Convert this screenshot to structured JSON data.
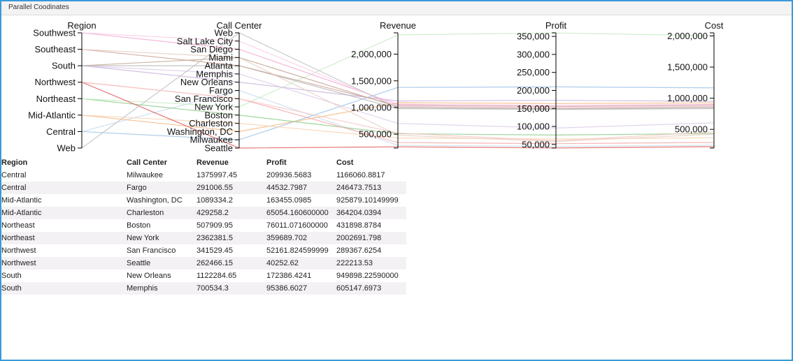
{
  "panel": {
    "title": "Parallel Coodinates"
  },
  "chart_data": {
    "type": "parallel-coordinates",
    "axes": [
      {
        "name": "Region",
        "kind": "category",
        "categories": [
          "Southwest",
          "Southeast",
          "South",
          "Northwest",
          "Northeast",
          "Mid-Atlantic",
          "Central",
          "Web"
        ]
      },
      {
        "name": "Call Center",
        "kind": "category",
        "categories": [
          "Web",
          "Salt Lake City",
          "San Diego",
          "Miami",
          "Atlanta",
          "Memphis",
          "New Orleans",
          "Fargo",
          "San Francisco",
          "New York",
          "Boston",
          "Charleston",
          "Washington, DC",
          "Milwaukee",
          "Seattle"
        ]
      },
      {
        "name": "Revenue",
        "kind": "number",
        "domain": [
          240000,
          2400000
        ],
        "ticks": [
          500000,
          1000000,
          1500000,
          2000000
        ],
        "tick_labels": [
          "500,000",
          "1,000,000",
          "1,500,000",
          "2,000,000"
        ]
      },
      {
        "name": "Profit",
        "kind": "number",
        "domain": [
          40000,
          360000
        ],
        "ticks": [
          50000,
          100000,
          150000,
          200000,
          250000,
          300000,
          350000
        ],
        "tick_labels": [
          "50,000",
          "100,000",
          "150,000",
          "200,000",
          "250,000",
          "300,000",
          "350,000"
        ]
      },
      {
        "name": "Cost",
        "kind": "number",
        "domain": [
          200000,
          2050000
        ],
        "ticks": [
          500000,
          1000000,
          1500000,
          2000000
        ],
        "tick_labels": [
          "500,000",
          "1,000,000",
          "1,500,000",
          "2,000,000"
        ]
      }
    ],
    "lines": [
      {
        "region": "Central",
        "center": "Milwaukee",
        "revenue": 1375997.45,
        "profit": 209936.5683,
        "cost": 1166060.8817,
        "color": "#9ec4e6"
      },
      {
        "region": "Central",
        "center": "Fargo",
        "revenue": 291006.55,
        "profit": 44532.7987,
        "cost": 246473.7513,
        "color": "#c9dcf0"
      },
      {
        "region": "Mid-Atlantic",
        "center": "Washington, DC",
        "revenue": 1089334.2,
        "profit": 163455.0985,
        "cost": 925879.10149999,
        "color": "#f5b880"
      },
      {
        "region": "Mid-Atlantic",
        "center": "Charleston",
        "revenue": 429258.2,
        "profit": 65054.1606,
        "cost": 364204.0394,
        "color": "#f8d2b0"
      },
      {
        "region": "Northeast",
        "center": "Boston",
        "revenue": 507909.95,
        "profit": 76011.0716,
        "cost": 431898.8784,
        "color": "#8fcf8a"
      },
      {
        "region": "Northeast",
        "center": "New York",
        "revenue": 2362381.5,
        "profit": 359689.702,
        "cost": 2002691.798,
        "color": "#c9ebc5"
      },
      {
        "region": "Northwest",
        "center": "San Francisco",
        "revenue": 341529.45,
        "profit": 52161.824599999,
        "cost": 289367.6254,
        "color": "#f7a9a9"
      },
      {
        "region": "Northwest",
        "center": "Seattle",
        "revenue": 262466.15,
        "profit": 40252.62,
        "cost": 222213.53,
        "color": "#e06060"
      },
      {
        "region": "South",
        "center": "New Orleans",
        "revenue": 1122284.65,
        "profit": 172386.4241,
        "cost": 949898.2259,
        "color": "#c9b1dc"
      },
      {
        "region": "South",
        "center": "Memphis",
        "revenue": 700534.3,
        "profit": 95386.6027,
        "cost": 605147.6973,
        "color": "#dccdea"
      },
      {
        "region": "South",
        "center": "Miami",
        "revenue": 1010000,
        "profit": 150000,
        "cost": 860000,
        "color": "#c3a796"
      },
      {
        "region": "South",
        "center": "Atlanta",
        "revenue": 980000,
        "profit": 147000,
        "cost": 833000,
        "color": "#b8b8b8"
      },
      {
        "region": "Southeast",
        "center": "Atlanta",
        "revenue": 1040000,
        "profit": 155000,
        "cost": 885000,
        "color": "#d0a89a"
      },
      {
        "region": "Southwest",
        "center": "San Diego",
        "revenue": 1060000,
        "profit": 158000,
        "cost": 902000,
        "color": "#f4a9d4"
      },
      {
        "region": "Southwest",
        "center": "Salt Lake City",
        "revenue": 1020000,
        "profit": 152000,
        "cost": 868000,
        "color": "#f9cde6"
      },
      {
        "region": "Web",
        "center": "Web",
        "revenue": 990000,
        "profit": 148000,
        "cost": 842000,
        "color": "#c0c0c0"
      },
      {
        "region": "Northwest",
        "center": "San Francisco",
        "revenue": 520000,
        "profit": 60000,
        "cost": 460000,
        "color": "#f9c6c6"
      },
      {
        "region": "Southeast",
        "center": "Miami",
        "revenue": 480000,
        "profit": 58000,
        "cost": 422000,
        "color": "#e8cfc3"
      }
    ]
  },
  "table": {
    "headers": [
      "Region",
      "Call Center",
      "Revenue",
      "Profit",
      "Cost"
    ],
    "rows": [
      [
        "Central",
        "Milwaukee",
        "1375997.45",
        "209936.5683",
        "1166060.8817"
      ],
      [
        "Central",
        "Fargo",
        "291006.55",
        "44532.7987",
        "246473.7513"
      ],
      [
        "Mid-Atlantic",
        "Washington, DC",
        "1089334.2",
        "163455.0985",
        "925879.10149999"
      ],
      [
        "Mid-Atlantic",
        "Charleston",
        "429258.2",
        "65054.160600000",
        "364204.0394"
      ],
      [
        "Northeast",
        "Boston",
        "507909.95",
        "76011.071600000",
        "431898.8784"
      ],
      [
        "Northeast",
        "New York",
        "2362381.5",
        "359689.702",
        "2002691.798"
      ],
      [
        "Northwest",
        "San Francisco",
        "341529.45",
        "52161.824599999",
        "289367.6254"
      ],
      [
        "Northwest",
        "Seattle",
        "262466.15",
        "40252.62",
        "222213.53"
      ],
      [
        "South",
        "New Orleans",
        "1122284.65",
        "172386.4241",
        "949898.22590000"
      ],
      [
        "South",
        "Memphis",
        "700534.3",
        "95386.6027",
        "605147.6973"
      ]
    ]
  }
}
